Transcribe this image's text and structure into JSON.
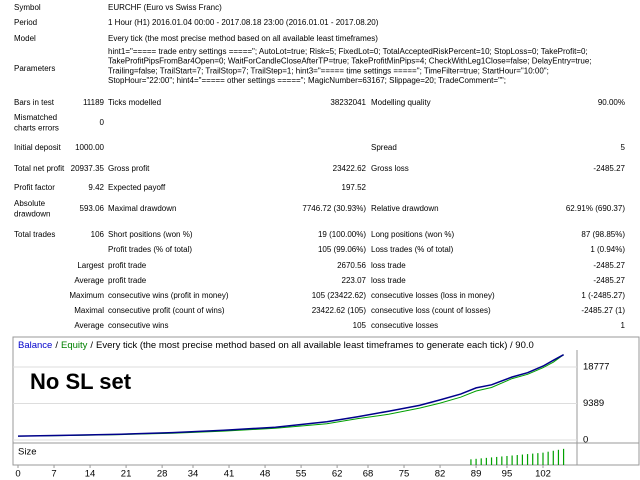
{
  "report": {
    "header_rows": [
      {
        "label": "Symbol",
        "text": "EURCHF (Euro vs Swiss Franc)"
      },
      {
        "label": "Period",
        "text": "1 Hour (H1) 2016.01.04 00:00 - 2017.08.18 23:00 (2016.01.01 - 2017.08.20)"
      },
      {
        "label": "Model",
        "text": "Every tick (the most precise method based on all available least timeframes)"
      },
      {
        "label": "Parameters",
        "lines": [
          "hint1=\"===== trade entry settings =====\"; AutoLot=true; Risk=5; FixedLot=0; TotalAcceptedRiskPercent=10; StopLoss=0; TakeProfit=0;",
          "TakeProfitPipsFromBar4Open=0; WaitForCandleCloseAfterTP=true; TakeProfitMinPips=4; CheckWithLeg1Close=false; DelayEntry=true;",
          "Trailing=false; TrailStart=7; TrailStop=7; TrailStep=1; hint3=\"===== time settings =====\"; TimeFilter=true; StartHour=\"10:00\";",
          "StopHour=\"22:00\"; hint4=\"===== other settings =====\"; MagicNumber=63167; Slippage=20; TradeComment=\"\";"
        ]
      }
    ],
    "stat_rows": [
      {
        "label": "Bars in test",
        "value": "11189",
        "mid_label": "Ticks modelled",
        "mid_value": "38232041",
        "right_label": "Modelling quality",
        "right_value": "90.00%"
      },
      {
        "label": "Mismatched charts errors",
        "value": "0"
      },
      {
        "label": "Initial deposit",
        "value": "1000.00",
        "right_label": "Spread",
        "right_value": "5"
      },
      {
        "label": "Total net profit",
        "value": "20937.35",
        "mid_label": "Gross profit",
        "mid_value": "23422.62",
        "right_label": "Gross loss",
        "right_value": "-2485.27"
      },
      {
        "label": "Profit factor",
        "value": "9.42",
        "mid_label": "Expected payoff",
        "mid_value": "197.52"
      },
      {
        "label": "Absolute drawdown",
        "value": "593.06",
        "mid_label": "Maximal drawdown",
        "mid_value": "7746.72 (30.93%)",
        "right_label": "Relative drawdown",
        "right_value": "62.91% (690.37)"
      },
      {
        "label": "Total trades",
        "value": "106",
        "mid_label": "Short positions (won %)",
        "mid_value": "19 (100.00%)",
        "right_label": "Long positions (won %)",
        "right_value": "87 (98.85%)"
      },
      {
        "mid_label": "Profit trades (% of total)",
        "mid_value": "105 (99.06%)",
        "right_label": "Loss trades (% of total)",
        "right_value": "1 (0.94%)"
      },
      {
        "prefix": "Largest",
        "mid_label": "profit trade",
        "mid_value": "2670.56",
        "right_label": "loss trade",
        "right_value": "-2485.27"
      },
      {
        "prefix": "Average",
        "mid_label": "profit trade",
        "mid_value": "223.07",
        "right_label": "loss trade",
        "right_value": "-2485.27"
      },
      {
        "prefix": "Maximum",
        "mid_label": "consecutive wins (profit in money)",
        "mid_value": "105 (23422.62)",
        "right_label": "consecutive losses (loss in money)",
        "right_value": "1 (-2485.27)"
      },
      {
        "prefix": "Maximal",
        "mid_label": "consecutive profit (count of wins)",
        "mid_value": "23422.62 (105)",
        "right_label": "consecutive loss (count of losses)",
        "right_value": "-2485.27 (1)"
      },
      {
        "prefix": "Average",
        "mid_label": "consecutive wins",
        "mid_value": "105",
        "right_label": "consecutive losses",
        "right_value": "1"
      }
    ]
  },
  "chart": {
    "legend": [
      "Balance",
      "Equity"
    ],
    "separator": "/",
    "header_text": "Every tick (the most precise method based on all available least timeframes to generate each tick) / 90.0",
    "annotation": "No SL set",
    "size_label": "Size",
    "xlim": [
      0,
      108
    ],
    "xticks": [
      0,
      7,
      14,
      21,
      28,
      34,
      41,
      48,
      55,
      62,
      68,
      75,
      82,
      89,
      95,
      102
    ],
    "ylim": [
      0,
      22500
    ],
    "yticks": [
      0,
      9389,
      18777
    ],
    "x": [
      0,
      10,
      20,
      30,
      40,
      50,
      60,
      66,
      72,
      78,
      82,
      86,
      89,
      92,
      96,
      99,
      102,
      104,
      106
    ],
    "series": [
      {
        "name": "Balance",
        "color": "#00008b",
        "values": [
          1000,
          1200,
          1500,
          1900,
          2500,
          3300,
          4700,
          6000,
          7400,
          8900,
          10300,
          11800,
          13400,
          14200,
          16200,
          17300,
          19000,
          20500,
          21937
        ]
      },
      {
        "name": "Equity",
        "color": "#00a000",
        "values": [
          1000,
          1150,
          1400,
          1750,
          2300,
          3000,
          4200,
          5500,
          6600,
          8200,
          9500,
          11000,
          12600,
          13500,
          15800,
          16900,
          18600,
          20000,
          21937
        ]
      }
    ],
    "size": {
      "color": "#00a000",
      "ylim": [
        0,
        2
      ],
      "x": [
        88,
        89,
        90,
        91,
        92,
        93,
        94,
        95,
        96,
        97,
        98,
        99,
        100,
        101,
        102,
        103,
        104,
        105,
        106
      ],
      "values": [
        0.6,
        0.65,
        0.7,
        0.75,
        0.8,
        0.85,
        0.9,
        0.95,
        1.0,
        1.05,
        1.1,
        1.15,
        1.2,
        1.25,
        1.3,
        1.4,
        1.5,
        1.6,
        1.7
      ]
    }
  }
}
